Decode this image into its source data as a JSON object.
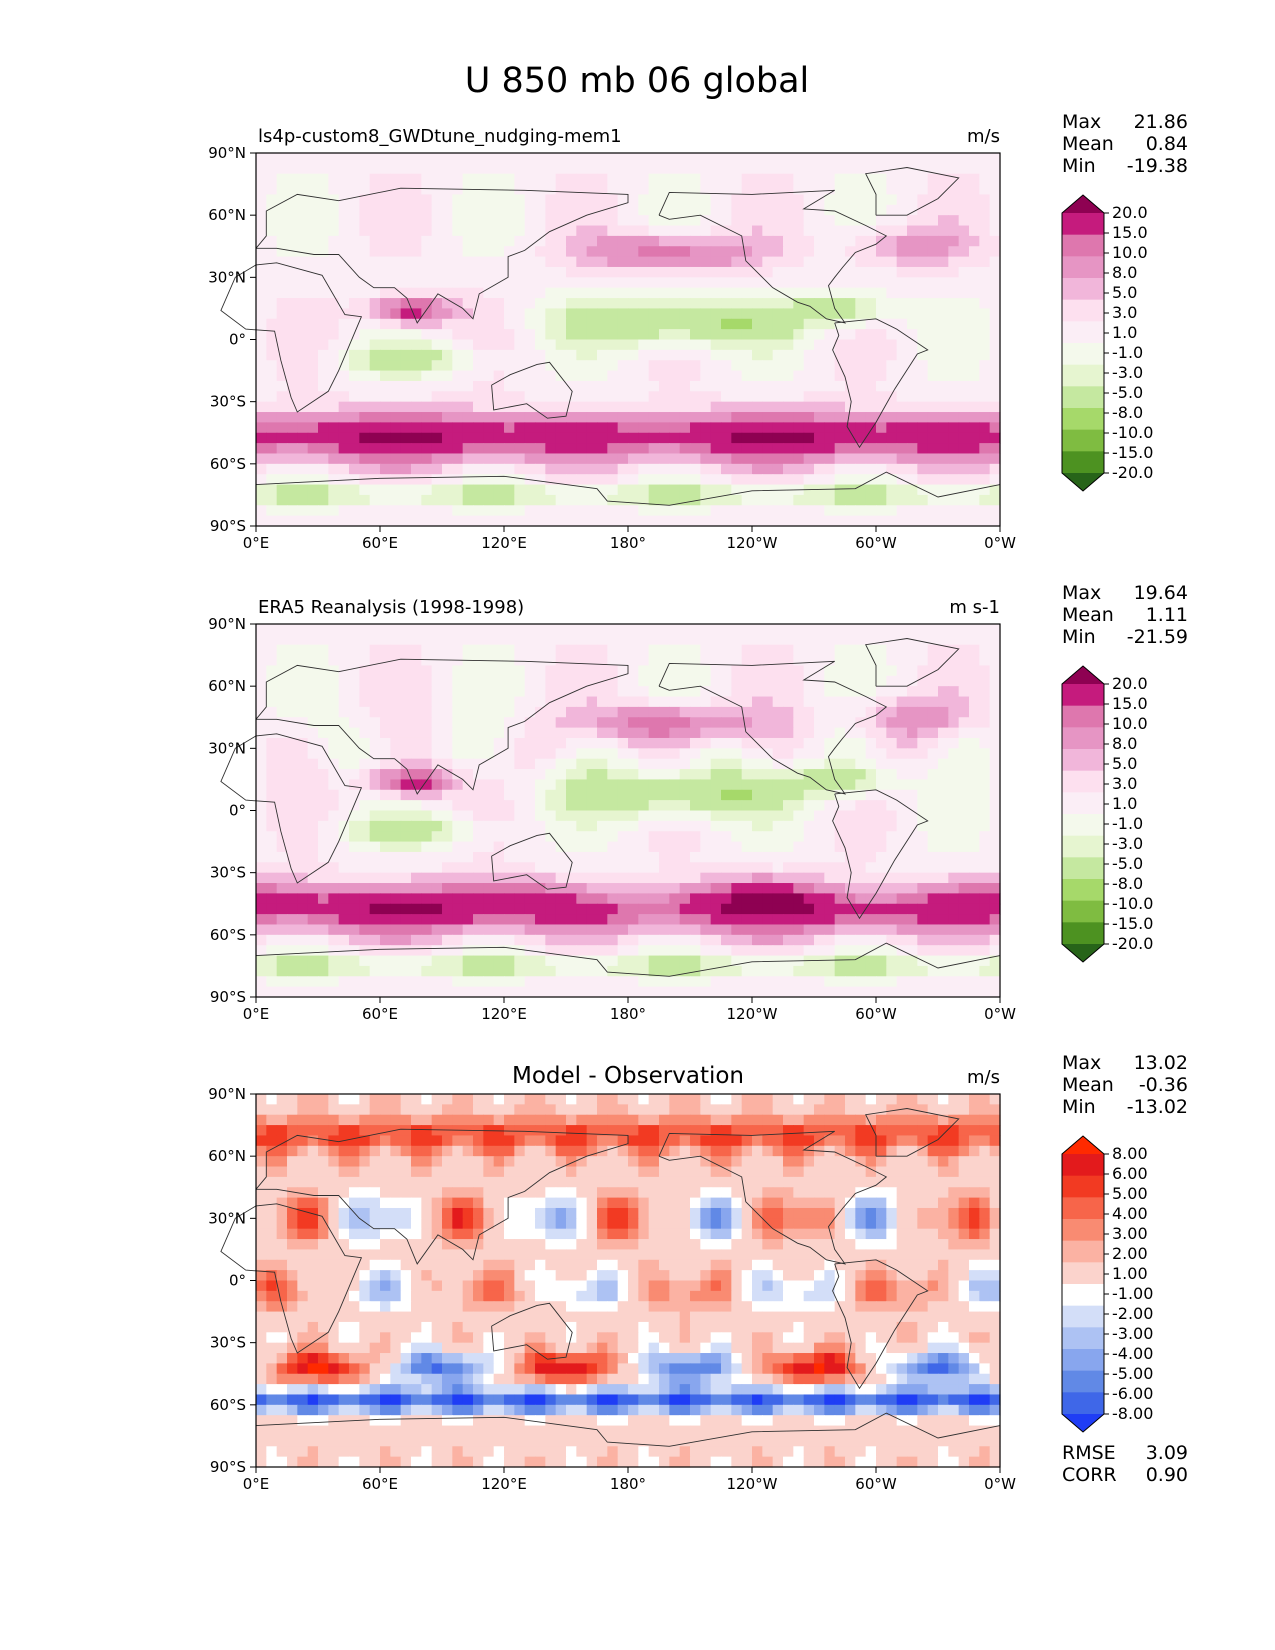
{
  "title": "U 850 mb 06 global",
  "colors": {
    "piyg": [
      "#276419",
      "#4d9221",
      "#7fbc41",
      "#a6d96a",
      "#c5e8a0",
      "#e6f5d0",
      "#f4f9ec",
      "#fbeef6",
      "#fde0ef",
      "#f1b6da",
      "#e695c4",
      "#de77ae",
      "#c51b7d",
      "#8e0152"
    ],
    "diff": [
      "#1f3df5",
      "#3f67e8",
      "#6189e6",
      "#88a6ee",
      "#adc2f3",
      "#d3def8",
      "#ffffff",
      "#fbd3cc",
      "#fbb2a3",
      "#f98b72",
      "#f7654a",
      "#f23a22",
      "#e31a1c",
      "#ff2a00"
    ],
    "coast": "#303030"
  },
  "chart_data": [
    {
      "type": "contourf-map",
      "panel": "model",
      "left_title": "ls4p-custom8_GWDtune_nudging-mem1",
      "center_title": "",
      "units": "m/s",
      "stats": {
        "max_label": "Max",
        "max": "21.86",
        "mean_label": "Mean",
        "mean": "0.84",
        "min_label": "Min",
        "min": "-19.38"
      },
      "colorbar_ticks": [
        "20.0",
        "15.0",
        "10.0",
        "8.0",
        "5.0",
        "3.0",
        "1.0",
        "-1.0",
        "-3.0",
        "-5.0",
        "-8.0",
        "-10.0",
        "-15.0",
        "-20.0"
      ],
      "levels": [
        -20,
        -15,
        -10,
        -8,
        -5,
        -3,
        -1,
        1,
        3,
        5,
        8,
        10,
        15,
        20
      ],
      "palette": "piyg",
      "xticks": [
        "0°E",
        "60°E",
        "120°E",
        "180°",
        "120°W",
        "60°W",
        "0°W"
      ],
      "yticks": [
        "90°N",
        "60°N",
        "30°N",
        "0°",
        "30°S",
        "60°S",
        "90°S"
      ],
      "lon_range": [
        0,
        360
      ],
      "lat_range": [
        -90,
        90
      ]
    },
    {
      "type": "contourf-map",
      "panel": "observation",
      "left_title": "ERA5 Reanalysis (1998-1998)",
      "center_title": "",
      "units": "m s-1",
      "stats": {
        "max_label": "Max",
        "max": "19.64",
        "mean_label": "Mean",
        "mean": "1.11",
        "min_label": "Min",
        "min": "-21.59"
      },
      "colorbar_ticks": [
        "20.0",
        "15.0",
        "10.0",
        "8.0",
        "5.0",
        "3.0",
        "1.0",
        "-1.0",
        "-3.0",
        "-5.0",
        "-8.0",
        "-10.0",
        "-15.0",
        "-20.0"
      ],
      "levels": [
        -20,
        -15,
        -10,
        -8,
        -5,
        -3,
        -1,
        1,
        3,
        5,
        8,
        10,
        15,
        20
      ],
      "palette": "piyg",
      "xticks": [
        "0°E",
        "60°E",
        "120°E",
        "180°",
        "120°W",
        "60°W",
        "0°W"
      ],
      "yticks": [
        "90°N",
        "60°N",
        "30°N",
        "0°",
        "30°S",
        "60°S",
        "90°S"
      ],
      "lon_range": [
        0,
        360
      ],
      "lat_range": [
        -90,
        90
      ]
    },
    {
      "type": "contourf-map",
      "panel": "difference",
      "left_title": "",
      "center_title": "Model - Observation",
      "units": "m/s",
      "stats": {
        "max_label": "Max",
        "max": "13.02",
        "mean_label": "Mean",
        "mean": "-0.36",
        "min_label": "Min",
        "min": "-13.02",
        "rmse_label": "RMSE",
        "rmse": "3.09",
        "corr_label": "CORR",
        "corr": "0.90"
      },
      "colorbar_ticks": [
        "8.00",
        "6.00",
        "5.00",
        "4.00",
        "3.00",
        "2.00",
        "1.00",
        "-1.00",
        "-2.00",
        "-3.00",
        "-4.00",
        "-5.00",
        "-6.00",
        "-8.00"
      ],
      "levels": [
        -8,
        -6,
        -5,
        -4,
        -3,
        -2,
        -1,
        1,
        2,
        3,
        4,
        5,
        6,
        8
      ],
      "palette": "diff",
      "xticks": [
        "0°E",
        "60°E",
        "120°E",
        "180°",
        "120°W",
        "60°W",
        "0°W"
      ],
      "yticks": [
        "90°N",
        "60°N",
        "30°N",
        "0°",
        "30°S",
        "60°S",
        "90°S"
      ],
      "lon_range": [
        0,
        360
      ],
      "lat_range": [
        -90,
        90
      ]
    }
  ]
}
